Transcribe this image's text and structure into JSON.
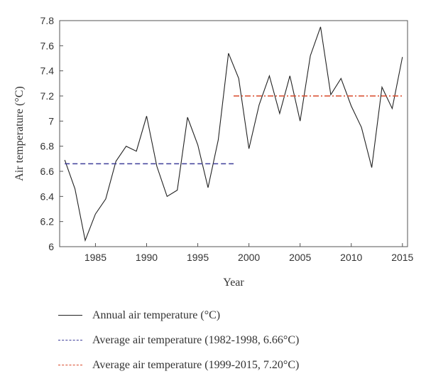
{
  "chart_data": {
    "type": "line",
    "xlabel": "Year",
    "ylabel": "Air temperature (°C)",
    "xlim": [
      1981.5,
      2015.5
    ],
    "ylim": [
      6.0,
      7.8
    ],
    "xticks": [
      1985,
      1990,
      1995,
      2000,
      2005,
      2010,
      2015
    ],
    "xtick_labels": [
      "1985",
      "1990",
      "1995",
      "2000",
      "2005",
      "2010",
      "2015"
    ],
    "yticks": [
      6.0,
      6.2,
      6.4,
      6.6,
      6.8,
      7.0,
      7.2,
      7.4,
      7.6,
      7.8
    ],
    "ytick_labels": [
      "6",
      "6.2",
      "6.4",
      "6.6",
      "6.8",
      "7",
      "7.2",
      "7.4",
      "7.6",
      "7.8"
    ],
    "grid": false,
    "legend_position": "bottom",
    "series": [
      {
        "name": "Annual air temperature (°C)",
        "color": "#222222",
        "style": "solid",
        "x": [
          1982,
          1983,
          1984,
          1985,
          1986,
          1987,
          1988,
          1989,
          1990,
          1991,
          1992,
          1993,
          1994,
          1995,
          1996,
          1997,
          1998,
          1999,
          2000,
          2001,
          2002,
          2003,
          2004,
          2005,
          2006,
          2007,
          2008,
          2009,
          2010,
          2011,
          2012,
          2013,
          2014,
          2015
        ],
        "values": [
          6.69,
          6.46,
          6.05,
          6.26,
          6.38,
          6.68,
          6.8,
          6.76,
          7.04,
          6.64,
          6.4,
          6.45,
          7.03,
          6.81,
          6.47,
          6.85,
          7.54,
          7.34,
          6.78,
          7.13,
          7.36,
          7.06,
          7.36,
          7.0,
          7.52,
          7.75,
          7.21,
          7.34,
          7.12,
          6.95,
          6.63,
          7.27,
          7.1,
          7.51
        ]
      },
      {
        "name": "Average air temperature (1982-1998, 6.66°C)",
        "color": "#3f3f9a",
        "style": "dashed",
        "x": [
          1982,
          1998.5
        ],
        "values": [
          6.66,
          6.66
        ]
      },
      {
        "name": "Average air temperature (1999-2015, 7.20°C)",
        "color": "#d94a2a",
        "style": "dashdot",
        "x": [
          1998.5,
          2015
        ],
        "values": [
          7.2,
          7.2
        ]
      }
    ]
  }
}
